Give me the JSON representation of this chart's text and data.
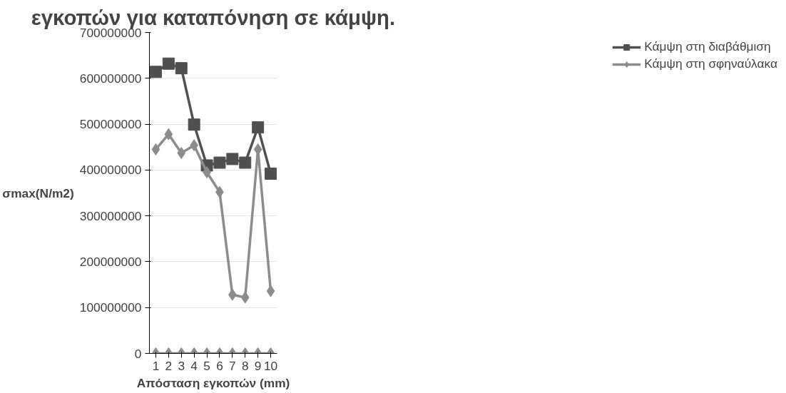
{
  "chart_data": {
    "type": "line",
    "title": "εγκοπών για καταπόνηση σε κάμψη.",
    "xlabel": "Απόσταση εγκοπών (mm)",
    "ylabel": "σmax(N/m2)",
    "categories": [
      "1",
      "2",
      "3",
      "4",
      "5",
      "6",
      "7",
      "8",
      "9",
      "10"
    ],
    "series": [
      {
        "name": "Κάμψη στη διαβάθμιση",
        "color": "#505050",
        "marker": "square",
        "values": [
          614000000,
          632000000,
          622000000,
          499000000,
          410000000,
          416000000,
          424000000,
          416000000,
          493000000,
          392000000
        ]
      },
      {
        "name": "Κάμψη στη σφηναύλακα",
        "color": "#8c8c8c",
        "marker": "diamond",
        "values": [
          445000000,
          478000000,
          437000000,
          454000000,
          395000000,
          352000000,
          128000000,
          122000000,
          445000000,
          136000000
        ]
      },
      {
        "color": "#8c8c8c",
        "marker": "diamond",
        "values": [
          0,
          0,
          0,
          0,
          0,
          0,
          0,
          0,
          0,
          0
        ]
      }
    ],
    "ylim": [
      0,
      700000000
    ],
    "yticks": [
      0,
      100000000,
      200000000,
      300000000,
      400000000,
      500000000,
      600000000,
      700000000
    ],
    "grid": "y",
    "legend": "right"
  }
}
